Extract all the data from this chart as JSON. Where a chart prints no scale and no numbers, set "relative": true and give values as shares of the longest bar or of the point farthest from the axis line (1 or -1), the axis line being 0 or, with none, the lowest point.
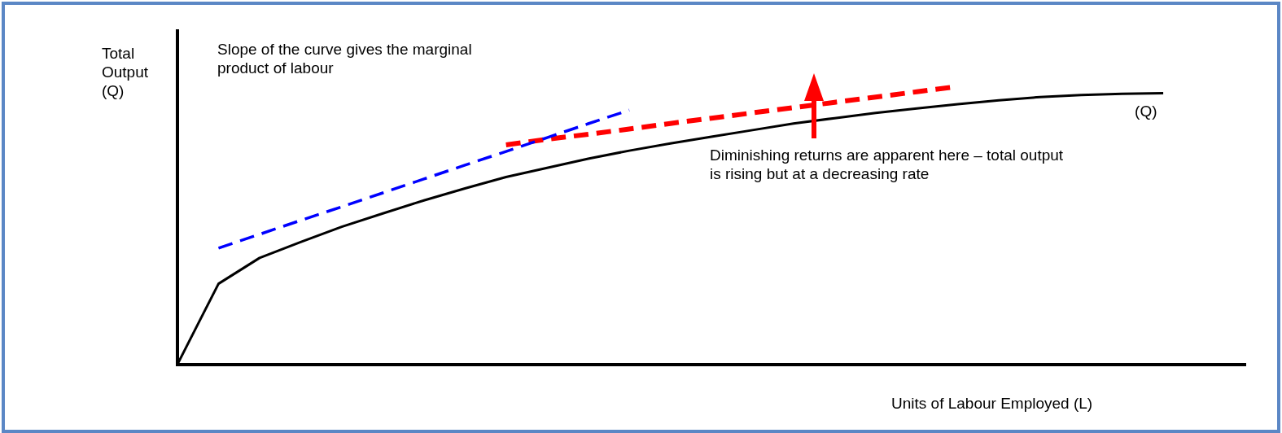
{
  "chart_data": {
    "type": "line",
    "relative": true,
    "ylabel": "Total Output (Q)",
    "xlabel": "Units of Labour Employed (L)",
    "legend": false,
    "grid": false,
    "marker": "none",
    "categories": [
      null,
      null,
      null,
      null,
      null,
      null,
      null,
      null,
      null,
      null,
      null,
      null,
      null,
      null,
      null,
      null,
      null,
      null,
      null,
      null,
      null,
      null,
      null,
      null,
      null,
      null,
      null
    ],
    "series": [
      {
        "name": "(Q)",
        "color": "#000000",
        "line_style": "solid",
        "values": [
          0,
          0.29,
          0.383,
          0.44,
          0.495,
          0.543,
          0.59,
          0.633,
          0.674,
          0.707,
          0.74,
          0.769,
          0.795,
          0.819,
          0.843,
          0.867,
          0.886,
          0.905,
          0.921,
          0.936,
          0.95,
          0.962,
          0.969,
          0.974,
          0.976,
          null,
          null
        ]
      },
      {
        "color": "#0000ff",
        "line_style": "dashed",
        "values": [
          null,
          0.418,
          0.468,
          0.518,
          0.567,
          0.617,
          0.667,
          0.717,
          0.766,
          0.816,
          0.866,
          0.915,
          null,
          null,
          null,
          null,
          null,
          null,
          null,
          null,
          null,
          null,
          null,
          null,
          null,
          null,
          null
        ]
      },
      {
        "color": "#ff0000",
        "line_style": "dashed",
        "values": [
          null,
          null,
          null,
          null,
          null,
          null,
          null,
          null,
          0.79,
          0.81,
          0.828,
          0.847,
          0.867,
          0.886,
          0.905,
          0.924,
          0.943,
          0.962,
          0.981,
          1.0,
          null,
          null,
          null,
          null,
          null,
          null,
          null
        ]
      }
    ],
    "annotations": [
      "Slope of the curve gives the marginal product of labour",
      "Diminishing returns are apparent here – total output is rising but at a decreasing rate"
    ]
  }
}
